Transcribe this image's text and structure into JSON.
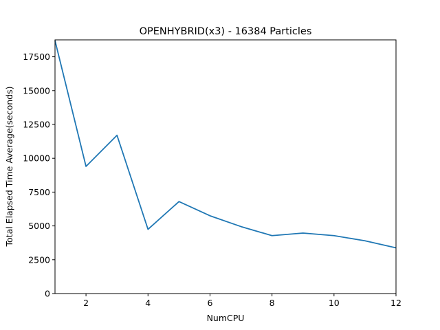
{
  "chart_data": {
    "type": "line",
    "title": "OPENHYBRID(x3) - 16384 Particles",
    "xlabel": "NumCPU",
    "ylabel": "Total Elapsed Time Average(seconds)",
    "xlim": [
      1,
      12
    ],
    "ylim": [
      0,
      18750
    ],
    "xticks": [
      2,
      4,
      6,
      8,
      10,
      12
    ],
    "yticks": [
      0,
      2500,
      5000,
      7500,
      10000,
      12500,
      15000,
      17500
    ],
    "grid": false,
    "series": [
      {
        "color": "#1f77b4",
        "x": [
          1,
          2,
          3,
          4,
          5,
          6,
          7,
          8,
          9,
          10,
          11,
          12
        ],
        "y": [
          18700,
          9400,
          11700,
          4750,
          6800,
          5750,
          4950,
          4280,
          4470,
          4280,
          3900,
          3380
        ]
      }
    ]
  }
}
